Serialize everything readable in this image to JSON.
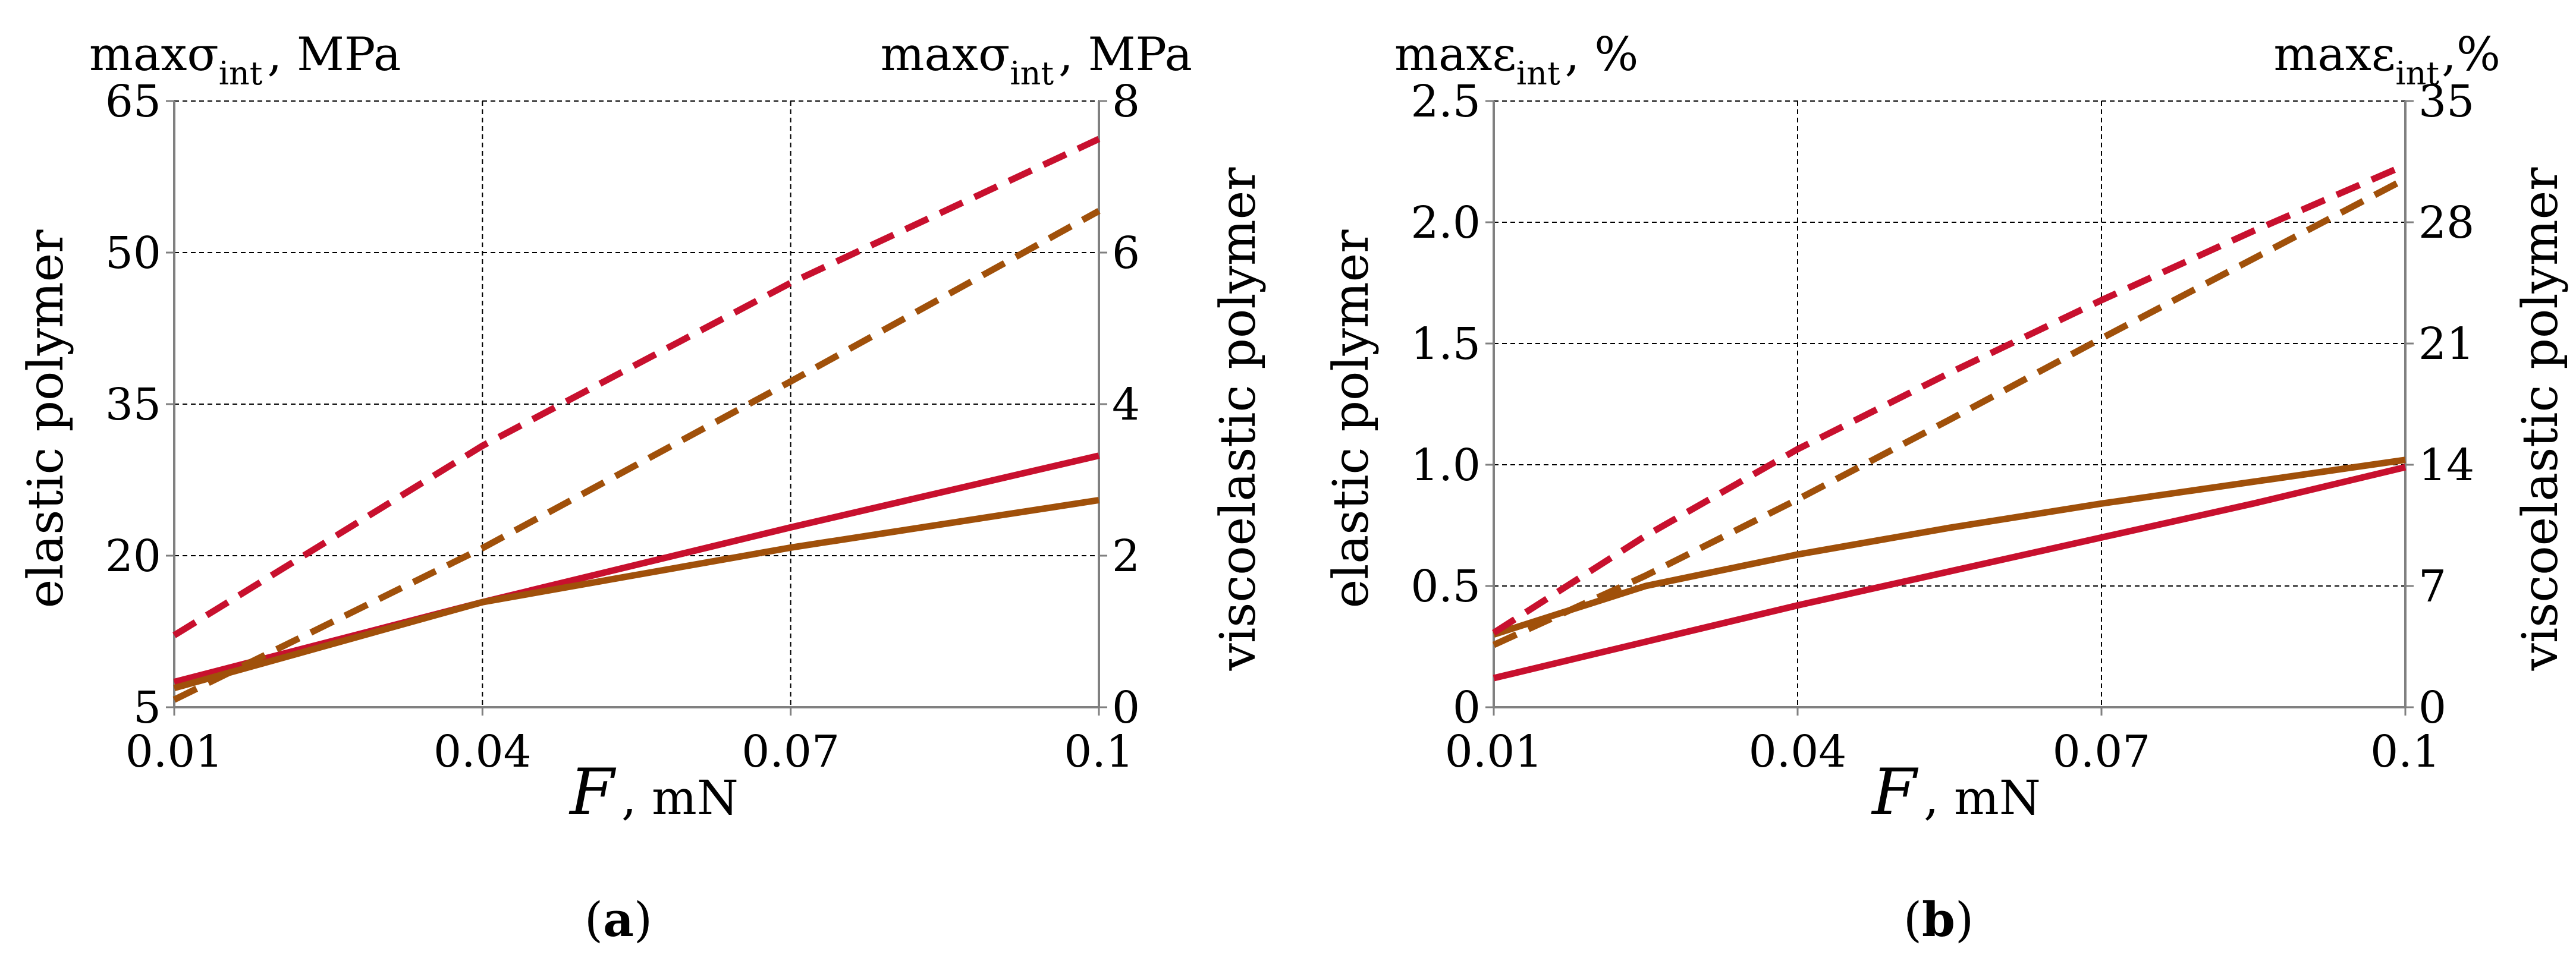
{
  "colors": {
    "red": "#C8102E",
    "brown": "#A0500A",
    "grid": "#000000",
    "axis": "#7f7f7f"
  },
  "chart_data": [
    {
      "type": "line",
      "panel_label": "a",
      "x": [
        0.01,
        0.04,
        0.07,
        0.1
      ],
      "x_tick_labels": [
        "0.01",
        "0.04",
        "0.07",
        "0.1"
      ],
      "xlim": [
        0.01,
        0.1
      ],
      "xlabel": {
        "symbol": "F",
        "unit": ", mN"
      },
      "left_axis": {
        "title_prefix": "max",
        "symbol": "σ",
        "subscript": "int",
        "unit": ", MPa",
        "side_label": "elastic polymer",
        "ticks": [
          5,
          20,
          35,
          50,
          65
        ],
        "tick_labels": [
          "5",
          "20",
          "35",
          "50",
          "65"
        ],
        "ylim": [
          5,
          65
        ]
      },
      "right_axis": {
        "title_prefix": "max",
        "symbol": "σ",
        "subscript": "int",
        "unit": ", MPa",
        "side_label": "viscoelastic polymer",
        "ticks": [
          0,
          2,
          4,
          6,
          8
        ],
        "tick_labels": [
          "0",
          "2",
          "4",
          "6",
          "8"
        ],
        "ylim": [
          0,
          8
        ]
      },
      "series": [
        {
          "name": "elastic polymer, red",
          "axis": "left",
          "color": "red",
          "dash": false,
          "values": [
            7.5,
            15.4,
            22.8,
            29.9
          ]
        },
        {
          "name": "elastic polymer, brown",
          "axis": "left",
          "color": "brown",
          "dash": false,
          "values": [
            6.9,
            15.4,
            20.8,
            25.5
          ]
        },
        {
          "name": "viscoelastic polymer, red",
          "axis": "right",
          "color": "red",
          "dash": true,
          "values": [
            0.95,
            3.45,
            5.6,
            7.5
          ]
        },
        {
          "name": "viscoelastic polymer, brown",
          "axis": "right",
          "color": "brown",
          "dash": true,
          "values": [
            0.1,
            2.1,
            4.3,
            6.55
          ]
        }
      ]
    },
    {
      "type": "line",
      "panel_label": "b",
      "x": [
        0.01,
        0.025,
        0.04,
        0.055,
        0.07,
        0.085,
        0.1
      ],
      "x_tick_labels": [
        "0.01",
        "0.04",
        "0.07",
        "0.1"
      ],
      "xlim": [
        0.01,
        0.1
      ],
      "xlabel": {
        "symbol": "F",
        "unit": ", mN"
      },
      "left_axis": {
        "title_prefix": "max",
        "symbol": "ε",
        "subscript": "int",
        "unit": ", %",
        "side_label": "elastic polymer",
        "ticks": [
          0,
          0.5,
          1.0,
          1.5,
          2.0,
          2.5
        ],
        "tick_labels": [
          "0",
          "0.5",
          "1.0",
          "1.5",
          "2.0",
          "2.5"
        ],
        "ylim": [
          0,
          2.5
        ]
      },
      "right_axis": {
        "title_prefix": "max",
        "symbol": "ε",
        "subscript": "int",
        "unit": ",%",
        "side_label": "viscoelastic polymer",
        "ticks": [
          0,
          7,
          14,
          21,
          28,
          35
        ],
        "tick_labels": [
          "0",
          "7",
          "14",
          "21",
          "28",
          "35"
        ],
        "ylim": [
          0,
          35
        ]
      },
      "series": [
        {
          "name": "elastic polymer, red",
          "axis": "left",
          "color": "red",
          "dash": false,
          "values": [
            0.12,
            0.27,
            0.42,
            0.56,
            0.7,
            0.84,
            0.99
          ]
        },
        {
          "name": "elastic polymer, brown",
          "axis": "left",
          "color": "brown",
          "dash": false,
          "values": [
            0.3,
            0.5,
            0.63,
            0.74,
            0.84,
            0.93,
            1.02
          ]
        },
        {
          "name": "viscoelastic polymer, red",
          "axis": "right",
          "color": "red",
          "dash": true,
          "values": [
            4.3,
            9.9,
            14.9,
            19.3,
            23.5,
            27.5,
            31.3
          ]
        },
        {
          "name": "viscoelastic polymer, brown",
          "axis": "right",
          "color": "brown",
          "dash": true,
          "values": [
            3.6,
            7.6,
            12.0,
            16.6,
            21.3,
            25.9,
            30.5
          ]
        }
      ]
    }
  ]
}
